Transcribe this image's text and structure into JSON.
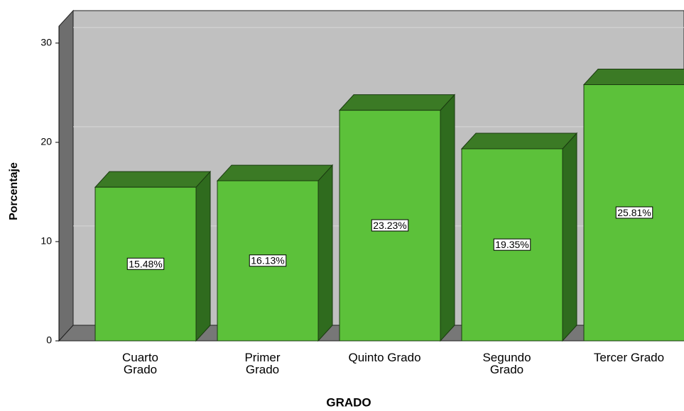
{
  "chart_data": {
    "type": "bar3d",
    "x_label": "GRADO",
    "y_label": "Porcentaje",
    "categories": [
      "Cuarto\nGrado",
      "Primer\nGrado",
      "Quinto Grado",
      "Segundo\nGrado",
      "Tercer Grado"
    ],
    "values": [
      15.48,
      16.13,
      23.23,
      19.35,
      25.81
    ],
    "value_labels": [
      "15.48%",
      "16.13%",
      "23.23%",
      "19.35%",
      "25.81%"
    ],
    "color": "#5cc13a",
    "ylim": [
      0,
      31.7
    ],
    "yticks": [
      0,
      10,
      20,
      30
    ],
    "grid": true
  }
}
